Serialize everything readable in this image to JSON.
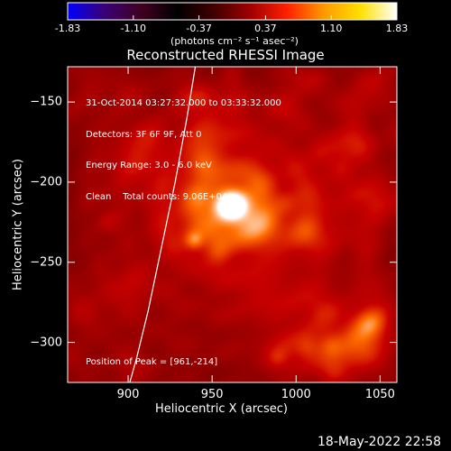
{
  "colorbar": {
    "ticks": [
      "-1.83",
      "-1.10",
      "-0.37",
      "0.37",
      "1.10",
      "1.83"
    ],
    "tick_values": [
      -1.83,
      -1.1,
      -0.37,
      0.37,
      1.1,
      1.83
    ],
    "units_text": "(photons cm⁻² s⁻¹ asec⁻²)",
    "colors": [
      "#0000ff",
      "#3a0077",
      "#400020",
      "#000000",
      "#400000",
      "#a00000",
      "#ff2000",
      "#ff9900",
      "#ffe000",
      "#ffffff"
    ]
  },
  "chart_data": {
    "type": "heatmap",
    "title": "Reconstructed RHESSI Image",
    "xlabel": "Heliocentric X (arcsec)",
    "ylabel": "Heliocentric Y (arcsec)",
    "xlim": [
      864,
      1060
    ],
    "ylim": [
      -325,
      -128
    ],
    "xticks": [
      900,
      950,
      1000,
      1050
    ],
    "yticks": [
      -150,
      -200,
      -250,
      -300
    ],
    "info_lines": [
      "31-Oct-2014 03:27:32.000 to 03:33:32.000",
      "Detectors: 3F 6F 9F, Att 0",
      "Energy Range: 3.0 - 6.0 keV",
      "Clean    Total counts: 9.06E+04"
    ],
    "peak_text": "Position of Peak = [961,-214]",
    "peak": [
      961,
      -214
    ],
    "secondary_source": [
      939,
      -236
    ],
    "limb_curve": [
      [
        940,
        -128
      ],
      [
        935,
        -160
      ],
      [
        928,
        -200
      ],
      [
        920,
        -240
      ],
      [
        912,
        -280
      ],
      [
        905,
        -310
      ],
      [
        901,
        -325
      ]
    ]
  },
  "footer_date": "18-May-2022 22:58"
}
